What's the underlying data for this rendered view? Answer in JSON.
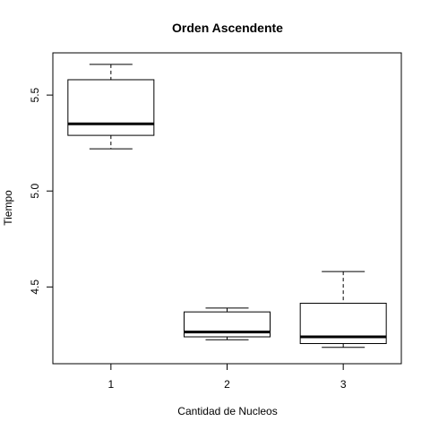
{
  "chart_data": {
    "type": "box",
    "title": "Orden Ascendente",
    "xlabel": "Cantidad de Nucleos",
    "ylabel": "Tiempo",
    "categories": [
      "1",
      "2",
      "3"
    ],
    "ylim": [
      4.1,
      5.72
    ],
    "yticks": [
      4.5,
      5.0,
      5.5
    ],
    "ytick_labels": [
      "4.5",
      "5.0",
      "5.5"
    ],
    "grid": false,
    "boxes": [
      {
        "category": "1",
        "min": 5.22,
        "q1": 5.29,
        "median": 5.35,
        "q3": 5.58,
        "max": 5.66
      },
      {
        "category": "2",
        "min": 4.225,
        "q1": 4.24,
        "median": 4.265,
        "q3": 4.37,
        "max": 4.39
      },
      {
        "category": "3",
        "min": 4.185,
        "q1": 4.205,
        "median": 4.24,
        "q3": 4.415,
        "max": 4.58
      }
    ],
    "colors": {
      "stroke": "#000000",
      "fill": "#ffffff"
    }
  }
}
